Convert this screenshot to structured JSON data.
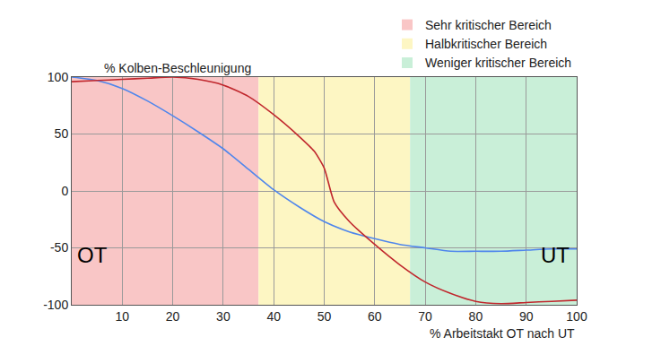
{
  "chart_data": {
    "type": "line",
    "y_label": "% Kolben-Beschleunigung",
    "x_label": "% Arbeitstakt OT nach UT",
    "annotations": [
      "OT",
      "UT"
    ],
    "series": [
      {
        "color": "#4f86ec",
        "x": [
          0,
          5,
          10,
          15,
          20,
          25,
          30,
          35,
          40,
          45,
          50,
          55,
          60,
          65,
          70,
          75,
          80,
          85,
          90,
          95,
          100
        ],
        "values": [
          100,
          97,
          90,
          79,
          66,
          52,
          37,
          19,
          1,
          -14,
          -27,
          -36,
          -42,
          -47,
          -50,
          -53,
          -53,
          -53,
          -52,
          -51,
          -51
        ]
      },
      {
        "color": "#c0272d",
        "x": [
          0,
          5,
          10,
          15,
          20,
          25,
          30,
          35,
          40,
          45,
          48,
          50,
          52,
          55,
          60,
          65,
          70,
          75,
          80,
          85,
          90,
          95,
          100
        ],
        "values": [
          96,
          97,
          98,
          99,
          100,
          98,
          93,
          83,
          67,
          48,
          35,
          20,
          -10,
          -27,
          -47,
          -65,
          -80,
          -90,
          -97,
          -99,
          -98,
          -97,
          -96
        ]
      }
    ],
    "regions": [
      {
        "label": "Sehr kritischer Bereich",
        "color": "#f9c6c6",
        "x": [
          0,
          37
        ]
      },
      {
        "label": "Halbkritischer Bereich",
        "color": "#fdf6c3",
        "x": [
          37,
          67
        ]
      },
      {
        "label": "Weniger kritischer Bereich",
        "color": "#c9efd8",
        "x": [
          67,
          100
        ]
      }
    ],
    "xlim": [
      0,
      100
    ],
    "ylim": [
      -100,
      100
    ],
    "xticks": [
      10,
      20,
      30,
      40,
      50,
      60,
      70,
      80,
      90,
      100
    ],
    "yticks": [
      -100,
      -50,
      0,
      50,
      100
    ],
    "grid": true,
    "legend": "top right"
  }
}
